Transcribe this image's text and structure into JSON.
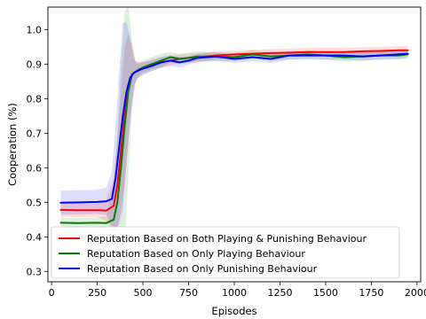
{
  "chart_data": {
    "type": "line",
    "xlabel": "Episodes",
    "ylabel": "Cooperation (%)",
    "xlim": [
      -20,
      2020
    ],
    "ylim": [
      0.27,
      1.065
    ],
    "xticks": [
      0,
      250,
      500,
      750,
      1000,
      1250,
      1500,
      1750,
      2000
    ],
    "yticks": [
      0.3,
      0.4,
      0.5,
      0.6,
      0.7,
      0.8,
      0.9,
      1.0
    ],
    "xtick_labels": [
      "0",
      "250",
      "500",
      "750",
      "1000",
      "1250",
      "1500",
      "1750",
      "2000"
    ],
    "ytick_labels": [
      "0.3",
      "0.4",
      "0.5",
      "0.6",
      "0.7",
      "0.8",
      "0.9",
      "1.0"
    ],
    "grid": false,
    "legend_position": "lower-left",
    "series": [
      {
        "name": "Reputation Based on Both Playing & Punishing Behaviour",
        "color": "#ff0000",
        "x": [
          50,
          150,
          250,
          300,
          340,
          360,
          380,
          400,
          420,
          440,
          460,
          480,
          500,
          550,
          600,
          650,
          700,
          750,
          800,
          900,
          1000,
          1100,
          1200,
          1300,
          1400,
          1500,
          1600,
          1700,
          1800,
          1900,
          1950
        ],
        "y": [
          0.478,
          0.477,
          0.477,
          0.476,
          0.49,
          0.55,
          0.65,
          0.75,
          0.83,
          0.87,
          0.878,
          0.885,
          0.89,
          0.9,
          0.905,
          0.91,
          0.915,
          0.918,
          0.92,
          0.925,
          0.928,
          0.93,
          0.932,
          0.933,
          0.935,
          0.935,
          0.935,
          0.937,
          0.938,
          0.94,
          0.94
        ],
        "band": [
          0.02,
          0.02,
          0.02,
          0.03,
          0.08,
          0.13,
          0.17,
          0.2,
          0.16,
          0.08,
          0.03,
          0.02,
          0.015,
          0.015,
          0.015,
          0.015,
          0.012,
          0.012,
          0.012,
          0.012,
          0.012,
          0.012,
          0.012,
          0.012,
          0.012,
          0.012,
          0.012,
          0.012,
          0.012,
          0.012,
          0.012
        ]
      },
      {
        "name": "Reputation Based on Only Playing Behaviour",
        "color": "#008000",
        "x": [
          50,
          150,
          250,
          300,
          340,
          360,
          380,
          400,
          420,
          440,
          460,
          480,
          500,
          550,
          600,
          650,
          700,
          750,
          800,
          900,
          1000,
          1100,
          1200,
          1300,
          1400,
          1500,
          1600,
          1700,
          1800,
          1900,
          1950
        ],
        "y": [
          0.441,
          0.44,
          0.441,
          0.44,
          0.45,
          0.5,
          0.6,
          0.72,
          0.82,
          0.87,
          0.878,
          0.885,
          0.89,
          0.9,
          0.91,
          0.92,
          0.915,
          0.918,
          0.922,
          0.922,
          0.92,
          0.928,
          0.922,
          0.925,
          0.928,
          0.925,
          0.92,
          0.922,
          0.925,
          0.925,
          0.928
        ],
        "band": [
          0.015,
          0.015,
          0.015,
          0.02,
          0.1,
          0.2,
          0.3,
          0.33,
          0.25,
          0.1,
          0.03,
          0.02,
          0.02,
          0.02,
          0.02,
          0.015,
          0.015,
          0.015,
          0.015,
          0.012,
          0.012,
          0.012,
          0.012,
          0.012,
          0.012,
          0.012,
          0.012,
          0.012,
          0.012,
          0.012,
          0.012
        ]
      },
      {
        "name": "Reputation Based on Only Punishing Behaviour",
        "color": "#0000ff",
        "x": [
          50,
          150,
          250,
          300,
          330,
          350,
          370,
          390,
          410,
          430,
          450,
          470,
          490,
          550,
          600,
          650,
          700,
          750,
          800,
          900,
          1000,
          1100,
          1200,
          1300,
          1400,
          1500,
          1600,
          1700,
          1800,
          1900,
          1950
        ],
        "y": [
          0.499,
          0.5,
          0.501,
          0.503,
          0.51,
          0.57,
          0.66,
          0.75,
          0.82,
          0.86,
          0.875,
          0.88,
          0.885,
          0.895,
          0.905,
          0.91,
          0.905,
          0.91,
          0.918,
          0.922,
          0.915,
          0.92,
          0.915,
          0.925,
          0.925,
          0.925,
          0.925,
          0.922,
          0.925,
          0.928,
          0.93
        ],
        "band": [
          0.035,
          0.035,
          0.035,
          0.04,
          0.08,
          0.15,
          0.22,
          0.27,
          0.2,
          0.12,
          0.04,
          0.02,
          0.02,
          0.015,
          0.015,
          0.015,
          0.015,
          0.012,
          0.012,
          0.012,
          0.012,
          0.012,
          0.012,
          0.012,
          0.012,
          0.012,
          0.012,
          0.012,
          0.012,
          0.012,
          0.012
        ]
      }
    ]
  }
}
